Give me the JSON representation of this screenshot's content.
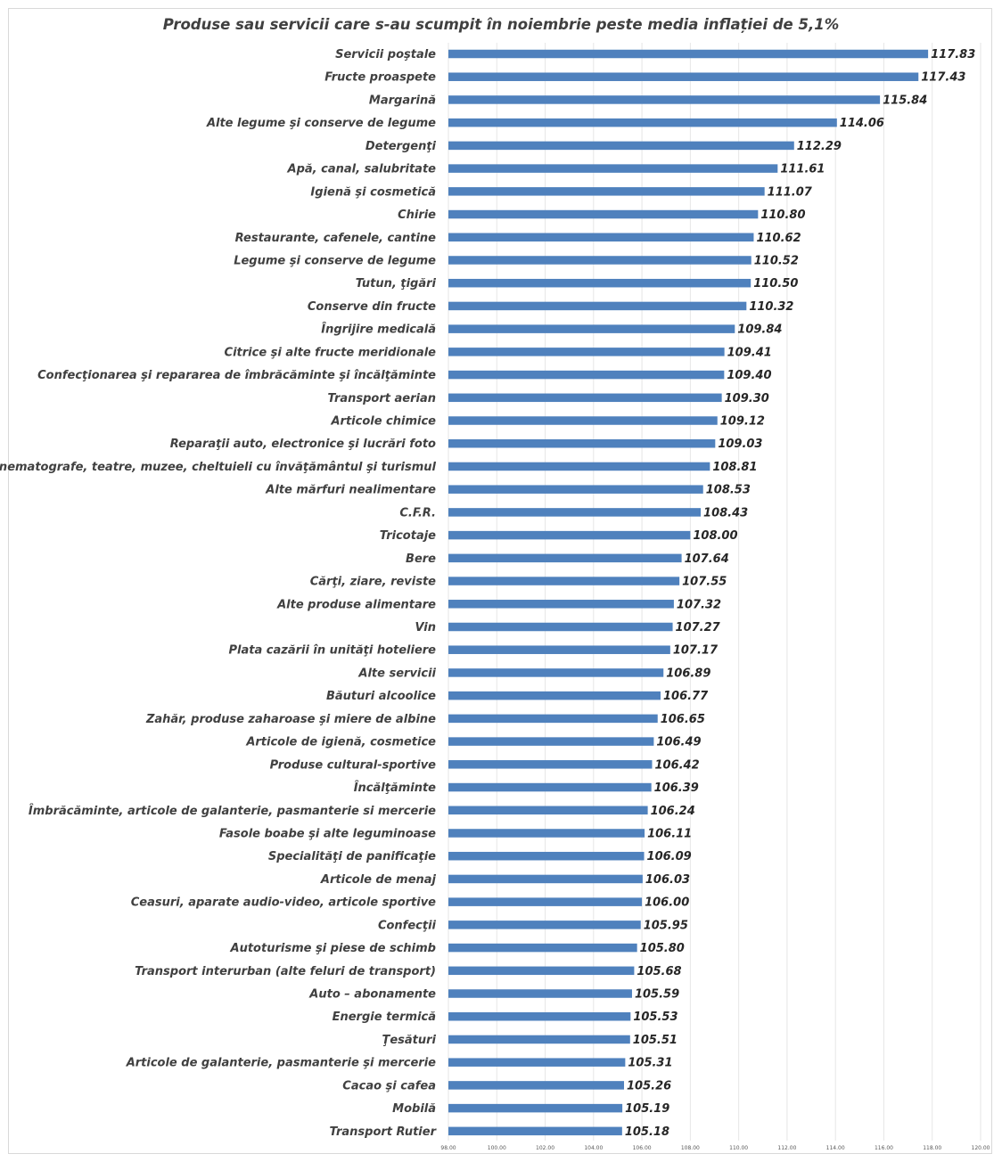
{
  "chart_data": {
    "type": "bar",
    "orientation": "horizontal",
    "title": "Produse sau servicii care s-au scumpit în noiembrie peste media inflației de 5,1%",
    "xlabel": "",
    "ylabel": "",
    "xlim": [
      98,
      120
    ],
    "xticks": [
      "98.00",
      "100.00",
      "102.00",
      "104.00",
      "106.00",
      "108.00",
      "110.00",
      "112.00",
      "114.00",
      "116.00",
      "118.00",
      "120.00"
    ],
    "grid": true,
    "bar_color": "#4f81bd",
    "categories": [
      "Servicii poştale",
      "Fructe proaspete",
      "Margarină",
      "Alte legume şi conserve de legume",
      "Detergenţi",
      "Apă, canal, salubritate",
      "Igienă şi cosmetică",
      "Chirie",
      "Restaurante, cafenele, cantine",
      "Legume şi conserve de legume",
      "Tutun, ţigări",
      "Conserve din fructe",
      "Îngrijire medicală",
      "Citrice şi alte fructe meridionale",
      "Confecţionarea şi repararea de îmbrăcăminte şi încălţăminte",
      "Transport aerian",
      "Articole chimice",
      "Reparaţii auto, electronice şi lucrări foto",
      "Cinematografe, teatre, muzee, cheltuieli cu  învăţământul şi turismul",
      "Alte mărfuri nealimentare",
      "C.F.R.",
      "Tricotaje",
      "Bere",
      "Cărţi, ziare, reviste",
      "Alte produse alimentare",
      "Vin",
      "Plata cazării în unităţi hoteliere",
      "Alte servicii",
      "Băuturi alcoolice",
      "Zahăr, produse zaharoase şi miere de albine",
      "Articole de igienă, cosmetice",
      "Produse cultural-sportive",
      "Încălţăminte",
      "Îmbrăcăminte, articole de galanterie, pasmanterie si mercerie",
      "Fasole boabe şi alte leguminoase",
      "Specialităţi de panificaţie",
      "Articole de menaj",
      "Ceasuri, aparate audio-video, articole sportive",
      "Confecţii",
      "Autoturisme şi piese de schimb",
      "Transport interurban (alte feluri de transport)",
      "Auto – abonamente",
      "Energie termică",
      "Ţesături",
      "Articole de galanterie, pasmanterie şi mercerie",
      "Cacao şi cafea",
      "Mobilă",
      "Transport Rutier"
    ],
    "values": [
      117.83,
      117.43,
      115.84,
      114.06,
      112.29,
      111.61,
      111.07,
      110.8,
      110.62,
      110.52,
      110.5,
      110.32,
      109.84,
      109.41,
      109.4,
      109.3,
      109.12,
      109.03,
      108.81,
      108.53,
      108.43,
      108.0,
      107.64,
      107.55,
      107.32,
      107.27,
      107.17,
      106.89,
      106.77,
      106.65,
      106.49,
      106.42,
      106.39,
      106.24,
      106.11,
      106.09,
      106.03,
      106.0,
      105.95,
      105.8,
      105.68,
      105.59,
      105.53,
      105.51,
      105.31,
      105.26,
      105.19,
      105.18
    ],
    "value_labels": [
      "117.83",
      "117.43",
      "115.84",
      "114.06",
      "112.29",
      "111.61",
      "111.07",
      "110.80",
      "110.62",
      "110.52",
      "110.50",
      "110.32",
      "109.84",
      "109.41",
      "109.40",
      "109.30",
      "109.12",
      "109.03",
      "108.81",
      "108.53",
      "108.43",
      "108.00",
      "107.64",
      "107.55",
      "107.32",
      "107.27",
      "107.17",
      "106.89",
      "106.77",
      "106.65",
      "106.49",
      "106.42",
      "106.39",
      "106.24",
      "106.11",
      "106.09",
      "106.03",
      "106.00",
      "105.95",
      "105.80",
      "105.68",
      "105.59",
      "105.53",
      "105.51",
      "105.31",
      "105.26",
      "105.19",
      "105.18"
    ]
  }
}
